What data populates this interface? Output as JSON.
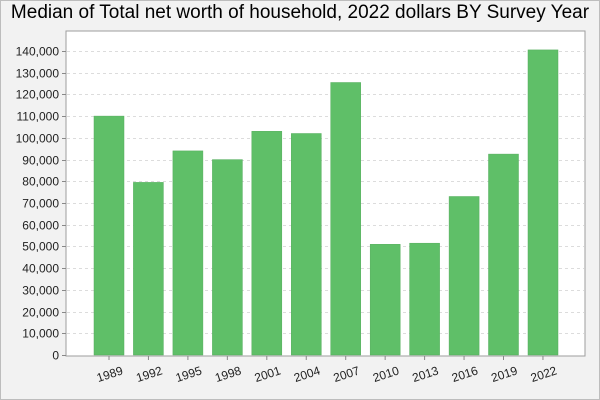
{
  "chart_data": {
    "type": "bar",
    "title": "Median of Total net worth of household, 2022 dollars BY Survey Year",
    "xlabel": "",
    "ylabel": "",
    "categories": [
      "1989",
      "1992",
      "1995",
      "1998",
      "2001",
      "2004",
      "2007",
      "2010",
      "2013",
      "2016",
      "2019",
      "2022"
    ],
    "values": [
      110000,
      79500,
      94000,
      90000,
      103000,
      102000,
      125500,
      51000,
      51500,
      73000,
      92500,
      140500
    ],
    "ylim": [
      0,
      145000
    ],
    "yticks": [
      0,
      10000,
      20000,
      30000,
      40000,
      50000,
      60000,
      70000,
      80000,
      90000,
      100000,
      110000,
      120000,
      130000,
      140000
    ],
    "ytick_labels": [
      "0",
      "10,000",
      "20,000",
      "30,000",
      "40,000",
      "50,000",
      "60,000",
      "70,000",
      "80,000",
      "90,000",
      "100,000",
      "110,000",
      "120,000",
      "130,000",
      "140,000"
    ],
    "grid": true,
    "legend": "none",
    "bar_color": "#5fbf68"
  }
}
